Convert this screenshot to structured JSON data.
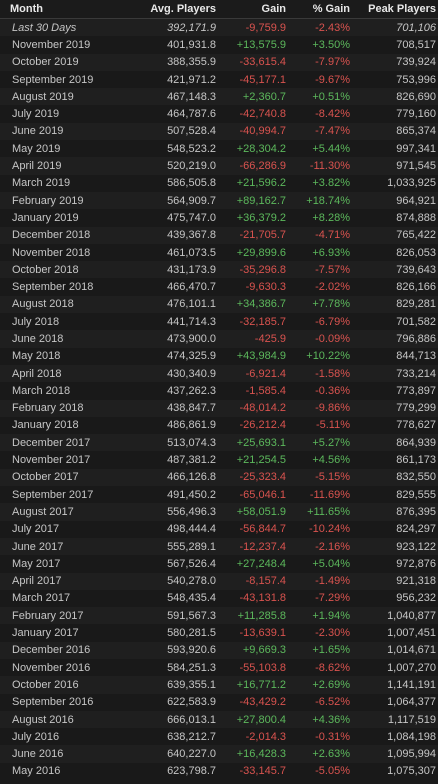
{
  "colors": {
    "negative": "#d9534f",
    "positive": "#5cb85c"
  },
  "columns": {
    "month": "Month",
    "avg": "Avg. Players",
    "gain": "Gain",
    "pct": "% Gain",
    "peak": "Peak Players"
  },
  "rows": [
    {
      "month": "Last 30 Days",
      "avg": "392,171.9",
      "gain": "-9,759.9",
      "pct": "-2.43%",
      "peak": "701,106",
      "dir": "neg",
      "italic": true
    },
    {
      "month": "November 2019",
      "avg": "401,931.8",
      "gain": "+13,575.9",
      "pct": "+3.50%",
      "peak": "708,517",
      "dir": "pos"
    },
    {
      "month": "October 2019",
      "avg": "388,355.9",
      "gain": "-33,615.4",
      "pct": "-7.97%",
      "peak": "739,924",
      "dir": "neg"
    },
    {
      "month": "September 2019",
      "avg": "421,971.2",
      "gain": "-45,177.1",
      "pct": "-9.67%",
      "peak": "753,996",
      "dir": "neg"
    },
    {
      "month": "August 2019",
      "avg": "467,148.3",
      "gain": "+2,360.7",
      "pct": "+0.51%",
      "peak": "826,690",
      "dir": "pos"
    },
    {
      "month": "July 2019",
      "avg": "464,787.6",
      "gain": "-42,740.8",
      "pct": "-8.42%",
      "peak": "779,160",
      "dir": "neg"
    },
    {
      "month": "June 2019",
      "avg": "507,528.4",
      "gain": "-40,994.7",
      "pct": "-7.47%",
      "peak": "865,374",
      "dir": "neg"
    },
    {
      "month": "May 2019",
      "avg": "548,523.2",
      "gain": "+28,304.2",
      "pct": "+5.44%",
      "peak": "997,341",
      "dir": "pos"
    },
    {
      "month": "April 2019",
      "avg": "520,219.0",
      "gain": "-66,286.9",
      "pct": "-11.30%",
      "peak": "971,545",
      "dir": "neg"
    },
    {
      "month": "March 2019",
      "avg": "586,505.8",
      "gain": "+21,596.2",
      "pct": "+3.82%",
      "peak": "1,033,925",
      "dir": "pos"
    },
    {
      "month": "February 2019",
      "avg": "564,909.7",
      "gain": "+89,162.7",
      "pct": "+18.74%",
      "peak": "964,921",
      "dir": "pos"
    },
    {
      "month": "January 2019",
      "avg": "475,747.0",
      "gain": "+36,379.2",
      "pct": "+8.28%",
      "peak": "874,888",
      "dir": "pos"
    },
    {
      "month": "December 2018",
      "avg": "439,367.8",
      "gain": "-21,705.7",
      "pct": "-4.71%",
      "peak": "765,422",
      "dir": "neg"
    },
    {
      "month": "November 2018",
      "avg": "461,073.5",
      "gain": "+29,899.6",
      "pct": "+6.93%",
      "peak": "826,053",
      "dir": "pos"
    },
    {
      "month": "October 2018",
      "avg": "431,173.9",
      "gain": "-35,296.8",
      "pct": "-7.57%",
      "peak": "739,643",
      "dir": "neg"
    },
    {
      "month": "September 2018",
      "avg": "466,470.7",
      "gain": "-9,630.3",
      "pct": "-2.02%",
      "peak": "826,166",
      "dir": "neg"
    },
    {
      "month": "August 2018",
      "avg": "476,101.1",
      "gain": "+34,386.7",
      "pct": "+7.78%",
      "peak": "829,281",
      "dir": "pos"
    },
    {
      "month": "July 2018",
      "avg": "441,714.3",
      "gain": "-32,185.7",
      "pct": "-6.79%",
      "peak": "701,582",
      "dir": "neg"
    },
    {
      "month": "June 2018",
      "avg": "473,900.0",
      "gain": "-425.9",
      "pct": "-0.09%",
      "peak": "796,886",
      "dir": "neg"
    },
    {
      "month": "May 2018",
      "avg": "474,325.9",
      "gain": "+43,984.9",
      "pct": "+10.22%",
      "peak": "844,713",
      "dir": "pos"
    },
    {
      "month": "April 2018",
      "avg": "430,340.9",
      "gain": "-6,921.4",
      "pct": "-1.58%",
      "peak": "733,214",
      "dir": "neg"
    },
    {
      "month": "March 2018",
      "avg": "437,262.3",
      "gain": "-1,585.4",
      "pct": "-0.36%",
      "peak": "773,897",
      "dir": "neg"
    },
    {
      "month": "February 2018",
      "avg": "438,847.7",
      "gain": "-48,014.2",
      "pct": "-9.86%",
      "peak": "779,299",
      "dir": "neg"
    },
    {
      "month": "January 2018",
      "avg": "486,861.9",
      "gain": "-26,212.4",
      "pct": "-5.11%",
      "peak": "778,627",
      "dir": "neg"
    },
    {
      "month": "December 2017",
      "avg": "513,074.3",
      "gain": "+25,693.1",
      "pct": "+5.27%",
      "peak": "864,939",
      "dir": "pos"
    },
    {
      "month": "November 2017",
      "avg": "487,381.2",
      "gain": "+21,254.5",
      "pct": "+4.56%",
      "peak": "861,173",
      "dir": "pos"
    },
    {
      "month": "October 2017",
      "avg": "466,126.8",
      "gain": "-25,323.4",
      "pct": "-5.15%",
      "peak": "832,550",
      "dir": "neg"
    },
    {
      "month": "September 2017",
      "avg": "491,450.2",
      "gain": "-65,046.1",
      "pct": "-11.69%",
      "peak": "829,555",
      "dir": "neg"
    },
    {
      "month": "August 2017",
      "avg": "556,496.3",
      "gain": "+58,051.9",
      "pct": "+11.65%",
      "peak": "876,395",
      "dir": "pos"
    },
    {
      "month": "July 2017",
      "avg": "498,444.4",
      "gain": "-56,844.7",
      "pct": "-10.24%",
      "peak": "824,297",
      "dir": "neg"
    },
    {
      "month": "June 2017",
      "avg": "555,289.1",
      "gain": "-12,237.4",
      "pct": "-2.16%",
      "peak": "923,122",
      "dir": "neg"
    },
    {
      "month": "May 2017",
      "avg": "567,526.4",
      "gain": "+27,248.4",
      "pct": "+5.04%",
      "peak": "972,876",
      "dir": "pos"
    },
    {
      "month": "April 2017",
      "avg": "540,278.0",
      "gain": "-8,157.4",
      "pct": "-1.49%",
      "peak": "921,318",
      "dir": "neg"
    },
    {
      "month": "March 2017",
      "avg": "548,435.4",
      "gain": "-43,131.8",
      "pct": "-7.29%",
      "peak": "956,232",
      "dir": "neg"
    },
    {
      "month": "February 2017",
      "avg": "591,567.3",
      "gain": "+11,285.8",
      "pct": "+1.94%",
      "peak": "1,040,877",
      "dir": "pos"
    },
    {
      "month": "January 2017",
      "avg": "580,281.5",
      "gain": "-13,639.1",
      "pct": "-2.30%",
      "peak": "1,007,451",
      "dir": "neg"
    },
    {
      "month": "December 2016",
      "avg": "593,920.6",
      "gain": "+9,669.3",
      "pct": "+1.65%",
      "peak": "1,014,671",
      "dir": "pos"
    },
    {
      "month": "November 2016",
      "avg": "584,251.3",
      "gain": "-55,103.8",
      "pct": "-8.62%",
      "peak": "1,007,270",
      "dir": "neg"
    },
    {
      "month": "October 2016",
      "avg": "639,355.1",
      "gain": "+16,771.2",
      "pct": "+2.69%",
      "peak": "1,141,191",
      "dir": "pos"
    },
    {
      "month": "September 2016",
      "avg": "622,583.9",
      "gain": "-43,429.2",
      "pct": "-6.52%",
      "peak": "1,064,377",
      "dir": "neg"
    },
    {
      "month": "August 2016",
      "avg": "666,013.1",
      "gain": "+27,800.4",
      "pct": "+4.36%",
      "peak": "1,117,519",
      "dir": "pos"
    },
    {
      "month": "July 2016",
      "avg": "638,212.7",
      "gain": "-2,014.3",
      "pct": "-0.31%",
      "peak": "1,084,198",
      "dir": "neg"
    },
    {
      "month": "June 2016",
      "avg": "640,227.0",
      "gain": "+16,428.3",
      "pct": "+2.63%",
      "peak": "1,095,994",
      "dir": "pos"
    },
    {
      "month": "May 2016",
      "avg": "623,798.7",
      "gain": "-33,145.7",
      "pct": "-5.05%",
      "peak": "1,075,307",
      "dir": "neg"
    }
  ]
}
